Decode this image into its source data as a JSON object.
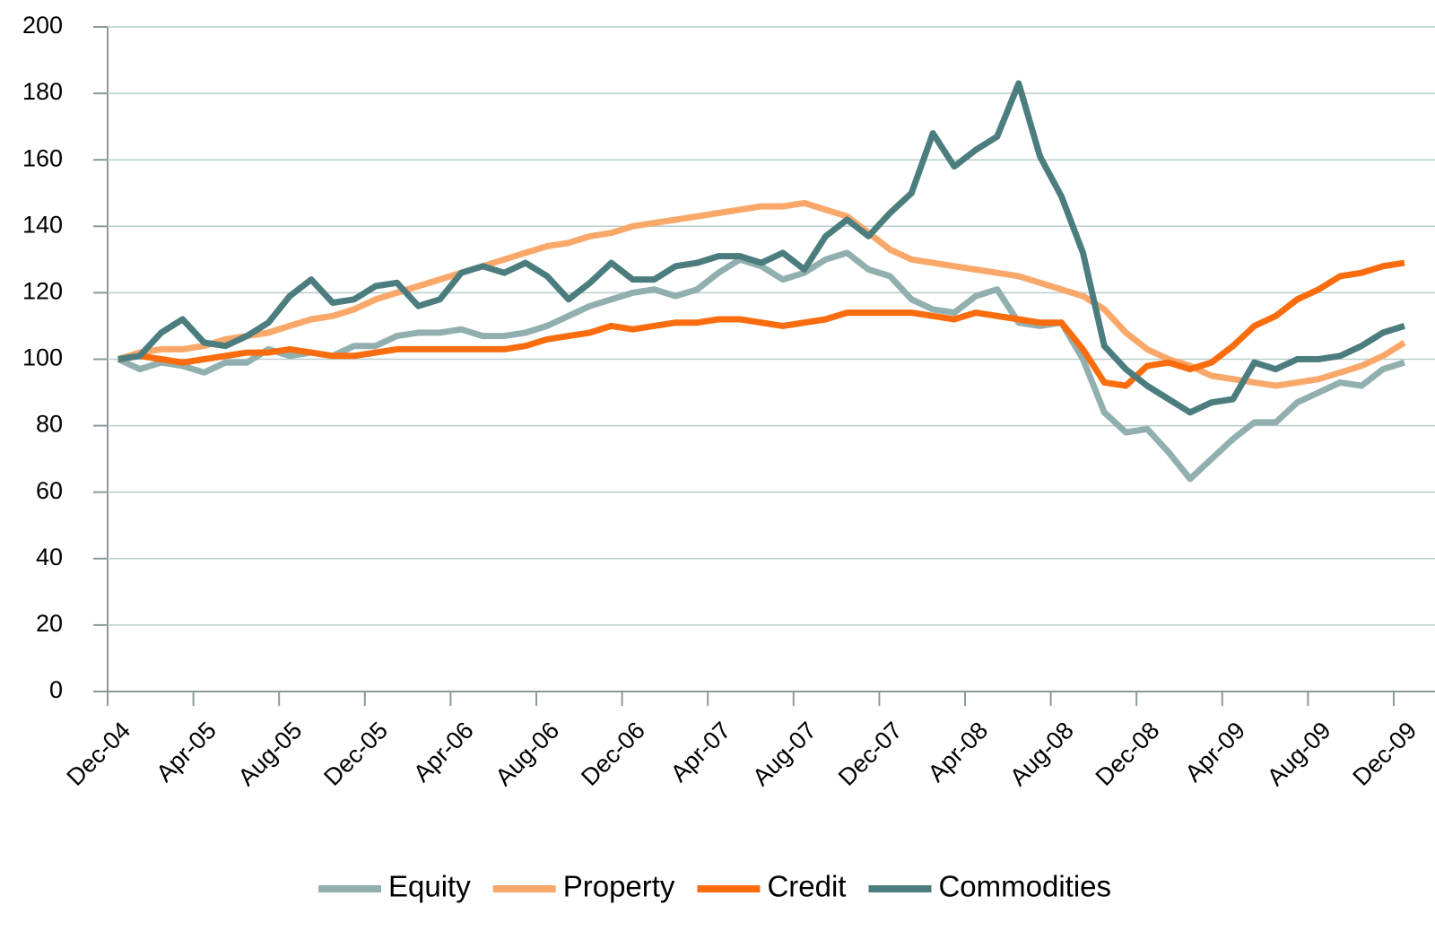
{
  "chart_data": {
    "type": "line",
    "categories": [
      "Dec-04",
      null,
      null,
      null,
      "Apr-05",
      null,
      null,
      null,
      "Aug-05",
      null,
      null,
      null,
      "Dec-05",
      null,
      null,
      null,
      "Apr-06",
      null,
      null,
      null,
      "Aug-06",
      null,
      null,
      null,
      "Dec-06",
      null,
      null,
      null,
      "Apr-07",
      null,
      null,
      null,
      "Aug-07",
      null,
      null,
      null,
      "Dec-07",
      null,
      null,
      null,
      "Apr-08",
      null,
      null,
      null,
      "Aug-08",
      null,
      null,
      null,
      "Dec-08",
      null,
      null,
      null,
      "Apr-09",
      null,
      null,
      null,
      "Aug-09",
      null,
      null,
      null,
      "Dec-09"
    ],
    "series": [
      {
        "name": "Equity",
        "color": "#92afaf",
        "values": [
          100,
          97,
          99,
          98,
          96,
          99,
          99,
          103,
          101,
          102,
          101,
          104,
          104,
          107,
          108,
          108,
          109,
          107,
          107,
          108,
          110,
          113,
          116,
          118,
          120,
          121,
          119,
          121,
          126,
          130,
          128,
          124,
          126,
          130,
          132,
          127,
          125,
          118,
          115,
          114,
          119,
          121,
          111,
          110,
          111,
          100,
          84,
          78,
          79,
          72,
          64,
          70,
          76,
          81,
          81,
          87,
          90,
          93,
          92,
          97,
          99
        ]
      },
      {
        "name": "Property",
        "color": "#f9a86a",
        "values": [
          100,
          102,
          103,
          103,
          104,
          106,
          107,
          108,
          110,
          112,
          113,
          115,
          118,
          120,
          122,
          124,
          126,
          128,
          130,
          132,
          134,
          135,
          137,
          138,
          140,
          141,
          142,
          143,
          144,
          145,
          146,
          146,
          147,
          145,
          143,
          138,
          133,
          130,
          129,
          128,
          127,
          126,
          125,
          123,
          121,
          119,
          115,
          108,
          103,
          100,
          98,
          95,
          94,
          93,
          92,
          93,
          94,
          96,
          98,
          101,
          105
        ]
      },
      {
        "name": "Credit",
        "color": "#fb6c0e",
        "values": [
          100,
          101,
          100,
          99,
          100,
          101,
          102,
          102,
          103,
          102,
          101,
          101,
          102,
          103,
          103,
          103,
          103,
          103,
          103,
          104,
          106,
          107,
          108,
          110,
          109,
          110,
          111,
          111,
          112,
          112,
          111,
          110,
          111,
          112,
          114,
          114,
          114,
          114,
          113,
          112,
          114,
          113,
          112,
          111,
          111,
          103,
          93,
          92,
          98,
          99,
          97,
          99,
          104,
          110,
          113,
          118,
          121,
          125,
          126,
          128,
          129
        ]
      },
      {
        "name": "Commodities",
        "color": "#4c7d7e",
        "values": [
          100,
          101,
          108,
          112,
          105,
          104,
          107,
          111,
          119,
          124,
          117,
          118,
          122,
          123,
          116,
          118,
          126,
          128,
          126,
          129,
          125,
          118,
          123,
          129,
          124,
          124,
          128,
          129,
          131,
          131,
          129,
          132,
          127,
          137,
          142,
          137,
          144,
          150,
          168,
          158,
          163,
          167,
          183,
          161,
          149,
          132,
          104,
          97,
          92,
          88,
          84,
          87,
          88,
          99,
          97,
          100,
          100,
          101,
          104,
          108,
          110
        ]
      }
    ],
    "ylim": [
      0,
      200
    ],
    "yticks": [
      0,
      20,
      40,
      60,
      80,
      100,
      120,
      140,
      160,
      180,
      200
    ],
    "grid": true,
    "legend": "bottom"
  }
}
